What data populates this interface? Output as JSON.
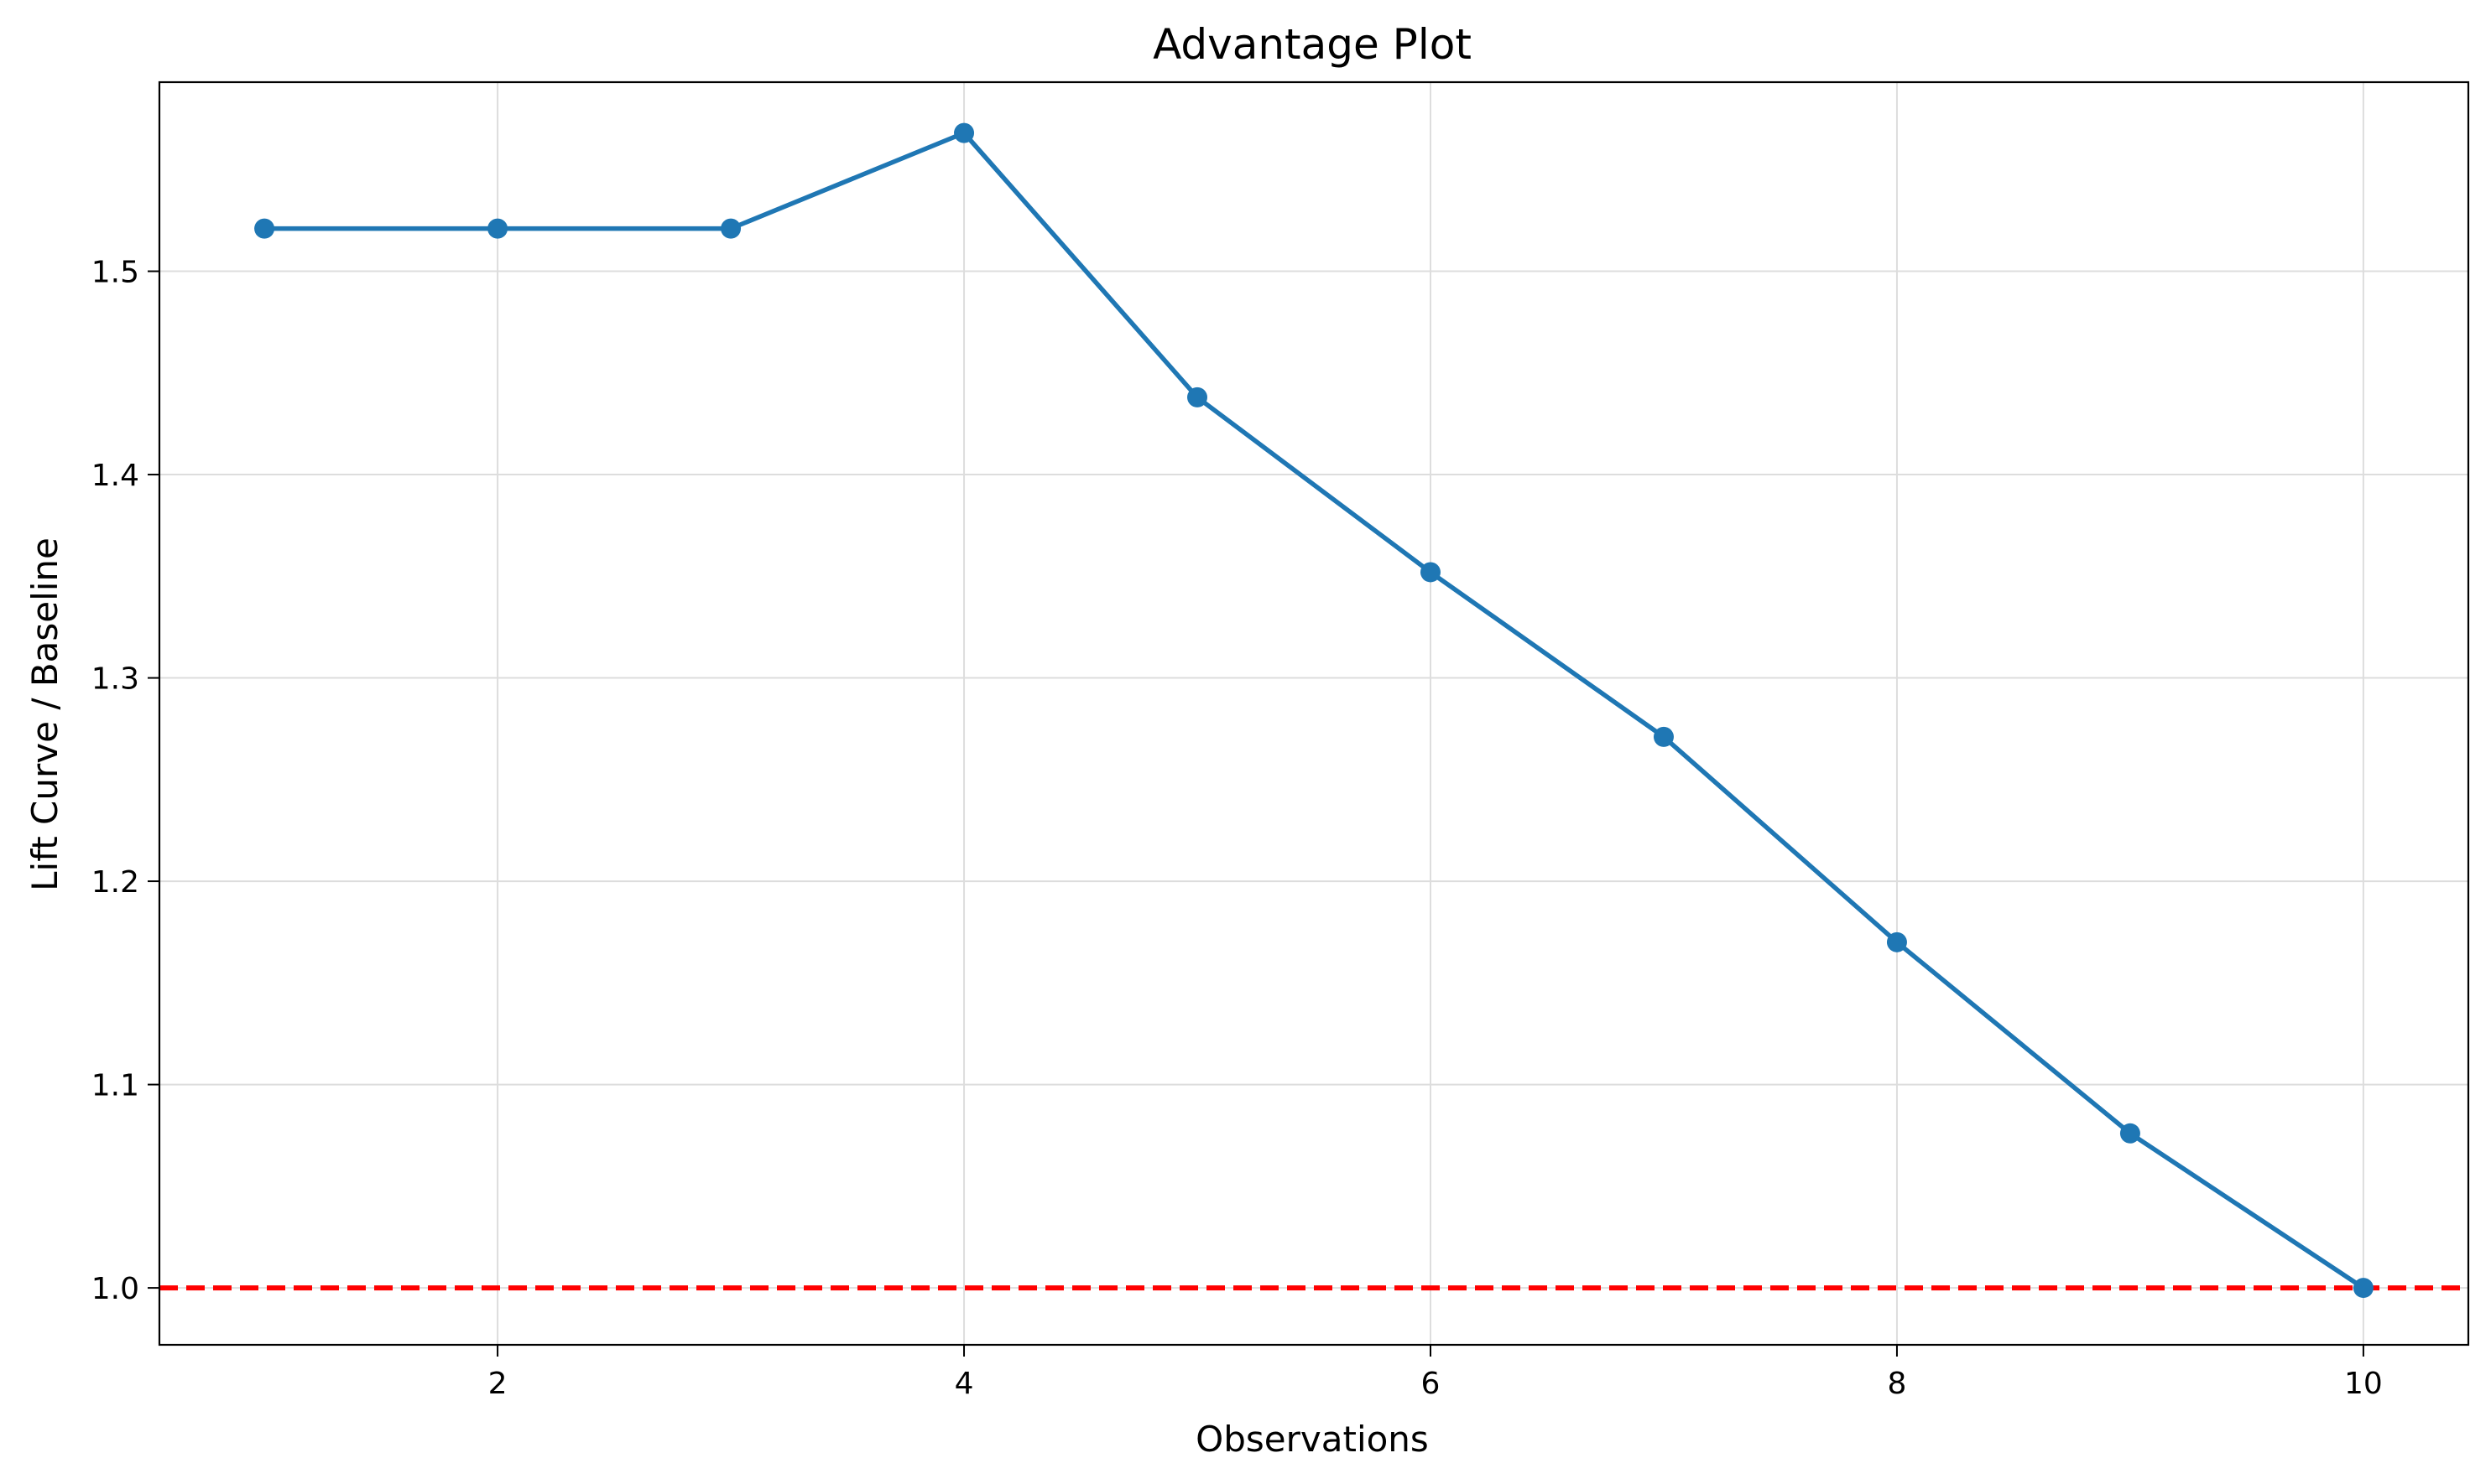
{
  "chart_data": {
    "type": "line",
    "title": "Advantage Plot",
    "xlabel": "Observations",
    "ylabel": "Lift Curve / Baseline",
    "xlim": [
      0.55,
      10.45
    ],
    "ylim": [
      0.972,
      1.593
    ],
    "xticks": [
      2,
      4,
      6,
      8,
      10
    ],
    "xtick_labels": [
      "2",
      "4",
      "6",
      "8",
      "10"
    ],
    "yticks": [
      1.0,
      1.1,
      1.2,
      1.3,
      1.4,
      1.5
    ],
    "ytick_labels": [
      "1.0",
      "1.1",
      "1.2",
      "1.3",
      "1.4",
      "1.5"
    ],
    "grid": true,
    "series": [
      {
        "x": [
          1,
          2,
          3,
          4,
          5,
          6,
          7,
          8,
          9,
          10
        ],
        "values": [
          1.521,
          1.521,
          1.521,
          1.568,
          1.438,
          1.352,
          1.271,
          1.17,
          1.076,
          1.0
        ],
        "color": "#1f77b4",
        "marker": "circle"
      }
    ],
    "reference_line": {
      "y": 1.0,
      "color": "#ff0000",
      "style": "dashed"
    }
  }
}
